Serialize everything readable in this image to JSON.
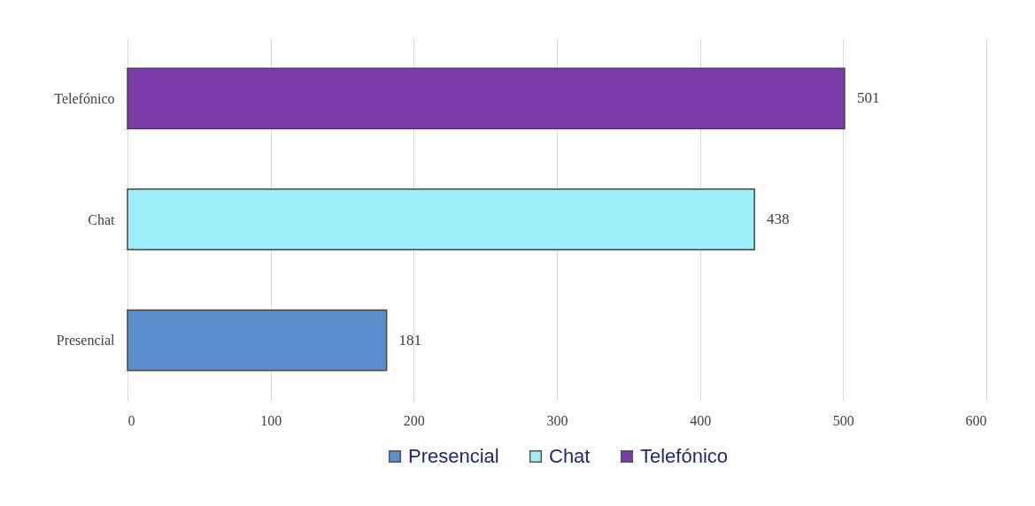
{
  "chart_data": {
    "type": "bar",
    "orientation": "horizontal",
    "categories": [
      "Telefónico",
      "Chat",
      "Presencial"
    ],
    "series": [
      {
        "name": "Presencial",
        "color": "#5a8fcf",
        "values": [
          null,
          null,
          181
        ]
      },
      {
        "name": "Chat",
        "color": "#9eeefa",
        "values": [
          null,
          438,
          null
        ]
      },
      {
        "name": "Telefónico",
        "color": "#7a3aa8",
        "values": [
          501,
          null,
          null
        ]
      }
    ],
    "xlim": [
      0,
      600
    ],
    "xticks": [
      0,
      100,
      200,
      300,
      400,
      500,
      600
    ],
    "grid": "x",
    "legend": "bottom",
    "data_labels": true
  }
}
